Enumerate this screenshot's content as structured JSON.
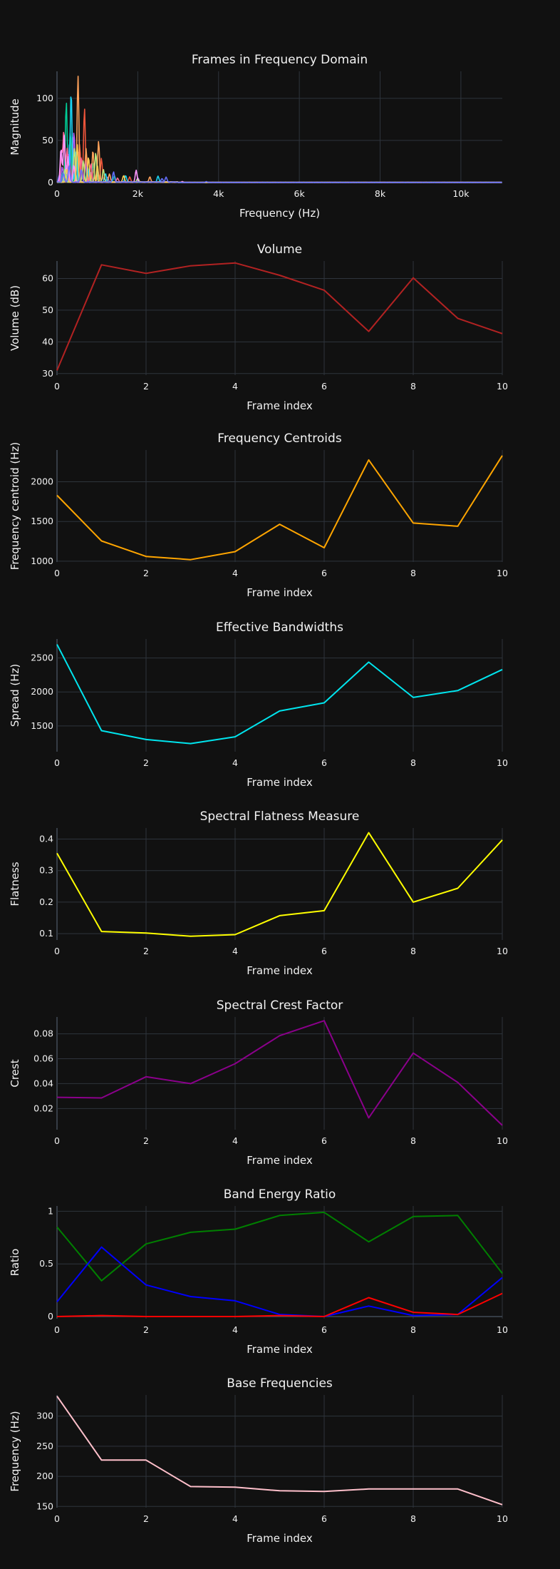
{
  "chart_data": [
    {
      "type": "line",
      "title": "Frames in Frequency Domain",
      "xlabel": "Frequency (Hz)",
      "ylabel": "Magnitude",
      "xlim": [
        0,
        11025
      ],
      "ylim": [
        0,
        132
      ],
      "xticks": [
        0,
        2000,
        4000,
        6000,
        8000,
        10000
      ],
      "xtick_labels": [
        "0",
        "2k",
        "4k",
        "6k",
        "8k",
        "10k"
      ],
      "yticks": [
        0,
        50,
        100
      ],
      "ytick_labels": [
        "0",
        "50",
        "100"
      ],
      "grid": true,
      "legend": "none",
      "series": [
        {
          "color": "#636efa",
          "peaks": [
            [
              60,
              8
            ],
            [
              240,
              20
            ],
            [
              310,
              45
            ],
            [
              540,
              35
            ],
            [
              820,
              12
            ],
            [
              1250,
              6
            ],
            [
              2600,
              4
            ]
          ]
        },
        {
          "color": "#ef553b",
          "peaks": [
            [
              190,
              22
            ],
            [
              390,
              55
            ],
            [
              560,
              45
            ],
            [
              680,
              88
            ],
            [
              900,
              15
            ],
            [
              1100,
              28
            ],
            [
              1800,
              6
            ]
          ]
        },
        {
          "color": "#00cc96",
          "peaks": [
            [
              150,
              12
            ],
            [
              230,
              95
            ],
            [
              330,
              60
            ],
            [
              480,
              40
            ],
            [
              900,
              22
            ],
            [
              1420,
              8
            ]
          ]
        },
        {
          "color": "#ab63fa",
          "peaks": [
            [
              130,
              18
            ],
            [
              280,
              35
            ],
            [
              420,
              60
            ],
            [
              700,
              25
            ],
            [
              1000,
              18
            ],
            [
              2000,
              5
            ]
          ]
        },
        {
          "color": "#ffa15a",
          "peaks": [
            [
              290,
              22
            ],
            [
              520,
              126
            ],
            [
              720,
              40
            ],
            [
              890,
              38
            ],
            [
              1030,
              49
            ],
            [
              1300,
              10
            ],
            [
              2300,
              6
            ]
          ]
        },
        {
          "color": "#19d3f3",
          "peaks": [
            [
              210,
              15
            ],
            [
              350,
              108
            ],
            [
              470,
              35
            ],
            [
              760,
              18
            ],
            [
              1200,
              10
            ],
            [
              1700,
              8
            ],
            [
              2500,
              7
            ]
          ]
        },
        {
          "color": "#ff6692",
          "peaks": [
            [
              110,
              35
            ],
            [
              170,
              61
            ],
            [
              250,
              40
            ],
            [
              600,
              30
            ],
            [
              840,
              22
            ],
            [
              1500,
              5
            ]
          ]
        },
        {
          "color": "#b6e880",
          "peaks": [
            [
              200,
              15
            ],
            [
              430,
              40
            ],
            [
              650,
              25
            ],
            [
              960,
              35
            ],
            [
              1150,
              15
            ],
            [
              2000,
              4
            ]
          ]
        },
        {
          "color": "#ff97ff",
          "peaks": [
            [
              100,
              40
            ],
            [
              180,
              55
            ],
            [
              270,
              30
            ],
            [
              420,
              20
            ],
            [
              1960,
              14
            ],
            [
              3100,
              3
            ]
          ]
        },
        {
          "color": "#fecb52",
          "peaks": [
            [
              240,
              15
            ],
            [
              500,
              45
            ],
            [
              780,
              30
            ],
            [
              1000,
              20
            ],
            [
              1650,
              8
            ]
          ]
        },
        {
          "color": "#636efa",
          "peaks": [
            [
              160,
              10
            ],
            [
              300,
              20
            ],
            [
              600,
              15
            ],
            [
              1400,
              12
            ],
            [
              2700,
              6
            ],
            [
              3700,
              3
            ]
          ]
        }
      ]
    },
    {
      "type": "line",
      "title": "Volume",
      "xlabel": "Frame index",
      "ylabel": "Volume (dB)",
      "x": [
        0,
        1,
        2,
        3,
        4,
        5,
        6,
        7,
        8,
        9,
        10
      ],
      "xlim": [
        0,
        10
      ],
      "ylim": [
        29.5,
        65.5
      ],
      "xticks": [
        0,
        2,
        4,
        6,
        8,
        10
      ],
      "yticks": [
        30,
        40,
        50,
        60
      ],
      "grid": true,
      "series": [
        {
          "color": "#b22222",
          "values": [
            31,
            64.3,
            61.6,
            64,
            64.9,
            61,
            56.3,
            43.3,
            60.2,
            47.4,
            42.6
          ]
        }
      ]
    },
    {
      "type": "line",
      "title": "Frequency Centroids",
      "xlabel": "Frame index",
      "ylabel": "Frequency centroid (Hz)",
      "x": [
        0,
        1,
        2,
        3,
        4,
        5,
        6,
        7,
        8,
        9,
        10
      ],
      "xlim": [
        0,
        10
      ],
      "ylim": [
        990,
        2400
      ],
      "xticks": [
        0,
        2,
        4,
        6,
        8,
        10
      ],
      "yticks": [
        1000,
        1500,
        2000
      ],
      "grid": true,
      "series": [
        {
          "color": "#ffa500",
          "values": [
            1830,
            1255,
            1060,
            1020,
            1120,
            1465,
            1170,
            2275,
            1480,
            1440,
            2330
          ]
        }
      ]
    },
    {
      "type": "line",
      "title": "Effective Bandwidths",
      "xlabel": "Frame index",
      "ylabel": "Spread (Hz)",
      "x": [
        0,
        1,
        2,
        3,
        4,
        5,
        6,
        7,
        8,
        9,
        10
      ],
      "xlim": [
        0,
        10
      ],
      "ylim": [
        1120,
        2780
      ],
      "xticks": [
        0,
        2,
        4,
        6,
        8,
        10
      ],
      "yticks": [
        1500,
        2000,
        2500
      ],
      "grid": true,
      "series": [
        {
          "color": "#00e5ee",
          "values": [
            2700,
            1430,
            1300,
            1240,
            1340,
            1720,
            1840,
            2440,
            1920,
            2020,
            2330
          ]
        }
      ]
    },
    {
      "type": "line",
      "title": "Spectral Flatness Measure",
      "xlabel": "Frame index",
      "ylabel": "Flatness",
      "x": [
        0,
        1,
        2,
        3,
        4,
        5,
        6,
        7,
        8,
        9,
        10
      ],
      "xlim": [
        0,
        10
      ],
      "ylim": [
        0.08,
        0.435
      ],
      "xticks": [
        0,
        2,
        4,
        6,
        8,
        10
      ],
      "yticks": [
        0.1,
        0.2,
        0.3,
        0.4
      ],
      "grid": true,
      "series": [
        {
          "color": "#ffff00",
          "values": [
            0.355,
            0.107,
            0.102,
            0.092,
            0.097,
            0.157,
            0.173,
            0.42,
            0.2,
            0.244,
            0.397
          ]
        }
      ]
    },
    {
      "type": "line",
      "title": "Spectral Crest Factor",
      "xlabel": "Frame index",
      "ylabel": "Crest",
      "x": [
        0,
        1,
        2,
        3,
        4,
        5,
        6,
        7,
        8,
        9,
        10
      ],
      "xlim": [
        0,
        10
      ],
      "ylim": [
        0.003,
        0.0935
      ],
      "xticks": [
        0,
        2,
        4,
        6,
        8,
        10
      ],
      "yticks": [
        0.02,
        0.04,
        0.06,
        0.08
      ],
      "grid": true,
      "series": [
        {
          "color": "#8b008b",
          "values": [
            0.029,
            0.0285,
            0.0455,
            0.04,
            0.056,
            0.0785,
            0.0905,
            0.0125,
            0.0645,
            0.041,
            0.0065
          ]
        }
      ]
    },
    {
      "type": "line",
      "title": "Band Energy Ratio",
      "xlabel": "Frame index",
      "ylabel": "Ratio",
      "x": [
        0,
        1,
        2,
        3,
        4,
        5,
        6,
        7,
        8,
        9,
        10
      ],
      "xlim": [
        0,
        10
      ],
      "ylim": [
        -0.02,
        1.05
      ],
      "xticks": [
        0,
        2,
        4,
        6,
        8,
        10
      ],
      "yticks": [
        0,
        0.5,
        1
      ],
      "ytick_labels": [
        "0",
        "0.5",
        "1"
      ],
      "grid": true,
      "series": [
        {
          "color": "#008000",
          "values": [
            0.85,
            0.34,
            0.69,
            0.8,
            0.83,
            0.96,
            0.99,
            0.71,
            0.95,
            0.96,
            0.41
          ]
        },
        {
          "color": "#0000ff",
          "values": [
            0.14,
            0.66,
            0.3,
            0.19,
            0.15,
            0.02,
            0.0,
            0.1,
            0.01,
            0.02,
            0.37
          ]
        },
        {
          "color": "#ff0000",
          "values": [
            0.0,
            0.01,
            0.0,
            0.0,
            0.0,
            0.01,
            0.0,
            0.18,
            0.04,
            0.02,
            0.22
          ]
        }
      ]
    },
    {
      "type": "line",
      "title": "Base Frequencies",
      "xlabel": "Frame index",
      "ylabel": "Frequency (Hz)",
      "x": [
        0,
        1,
        2,
        3,
        4,
        5,
        6,
        7,
        8,
        9,
        10
      ],
      "xlim": [
        0,
        10
      ],
      "ylim": [
        148,
        335
      ],
      "xticks": [
        0,
        2,
        4,
        6,
        8,
        10
      ],
      "yticks": [
        150,
        200,
        250,
        300
      ],
      "grid": true,
      "series": [
        {
          "color": "#ffc0cb",
          "values": [
            333,
            227,
            227,
            183,
            182,
            176,
            175,
            179,
            179,
            179,
            153
          ]
        }
      ]
    }
  ]
}
